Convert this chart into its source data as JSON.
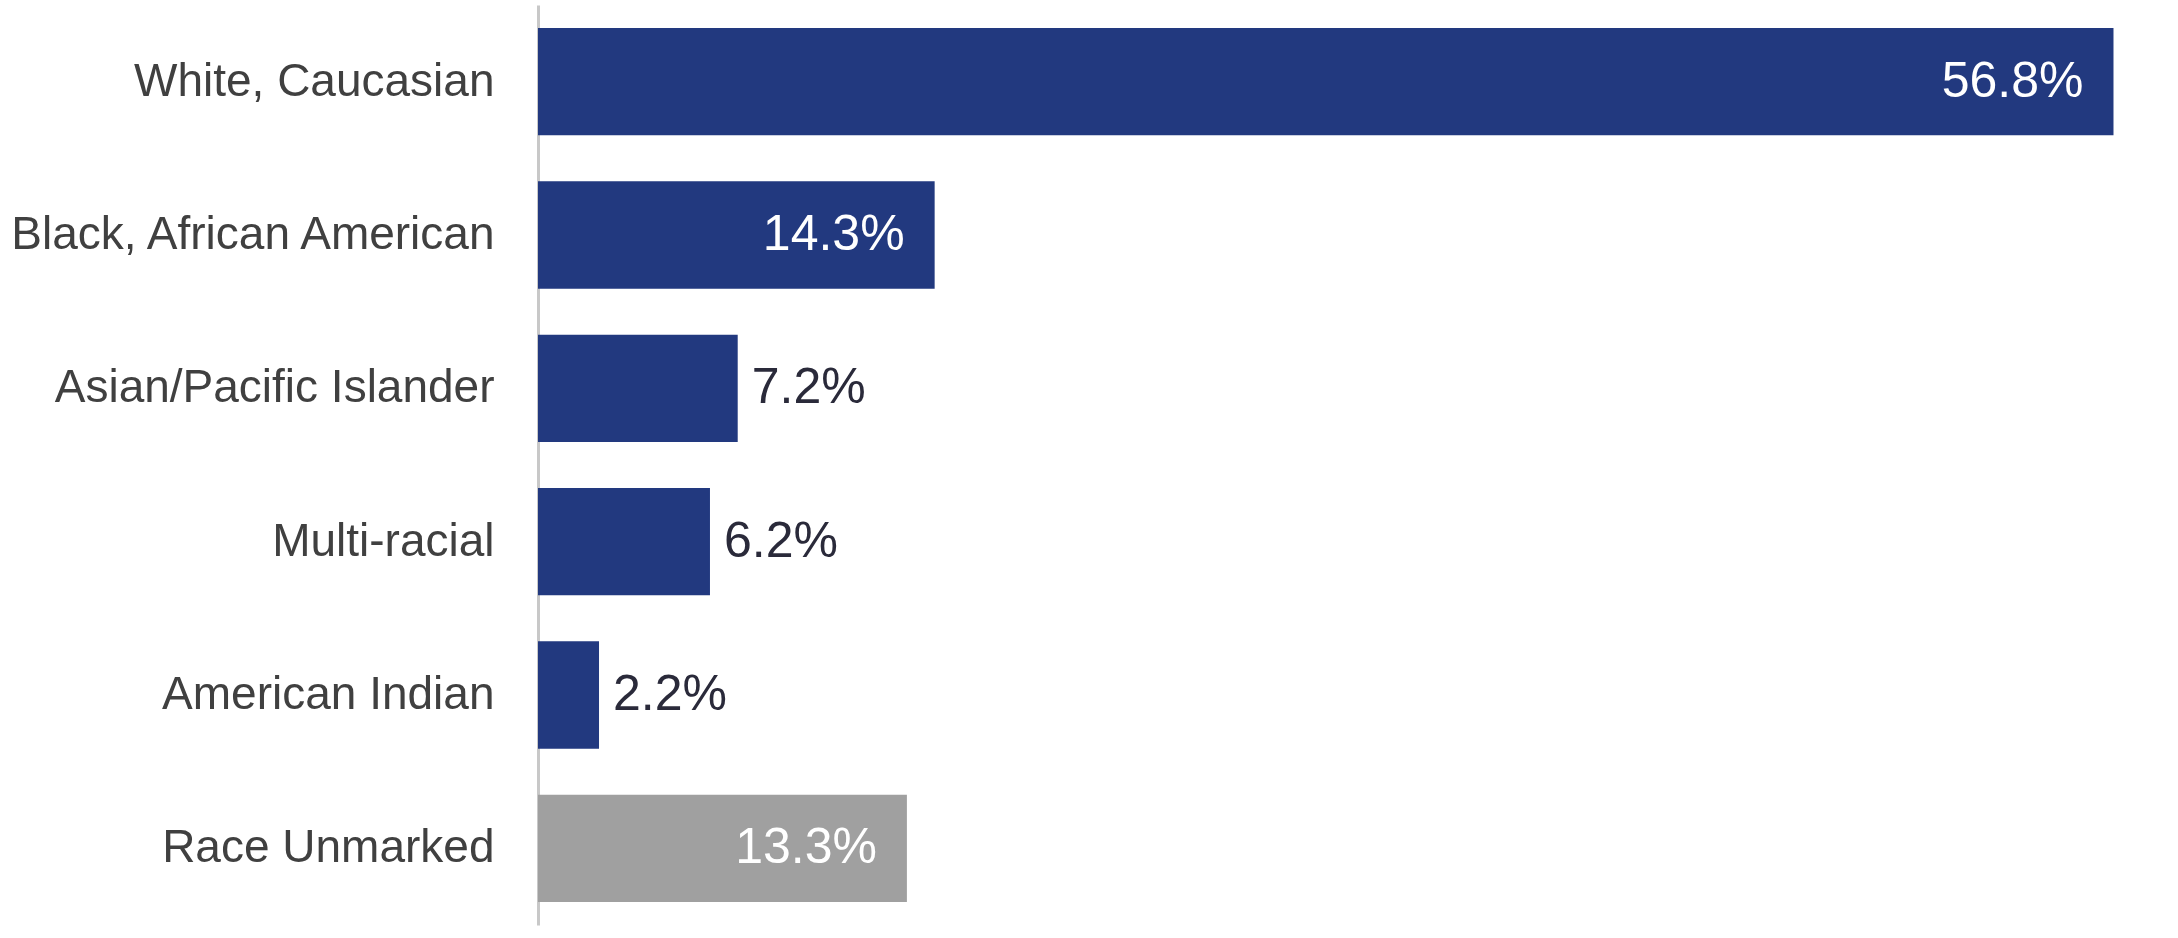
{
  "chart_data": {
    "type": "bar",
    "orientation": "horizontal",
    "categories": [
      "White, Caucasian",
      "Black, African American",
      "Asian/Pacific Islander",
      "Multi-racial",
      "American Indian",
      "Race Unmarked"
    ],
    "values": [
      56.8,
      14.3,
      7.2,
      6.2,
      2.2,
      13.3
    ],
    "colors": [
      "#22397f",
      "#22397f",
      "#22397f",
      "#22397f",
      "#22397f",
      "#a0a0a0"
    ],
    "value_labels": [
      "56.8%",
      "14.3%",
      "7.2%",
      "6.2%",
      "2.2%",
      "13.3%"
    ],
    "grid": false
  }
}
